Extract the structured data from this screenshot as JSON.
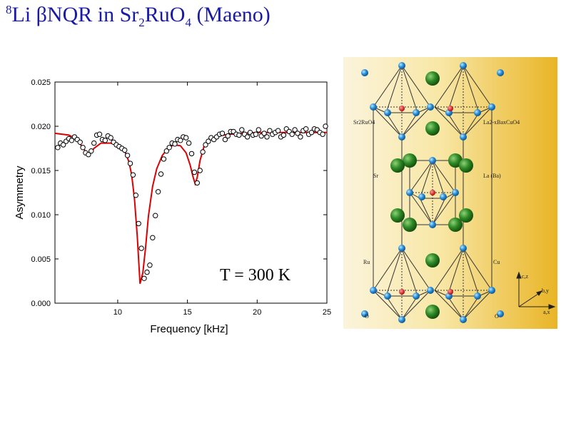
{
  "title": {
    "isotope_mass": "8",
    "text1": "Li βNQR in Sr",
    "sub1": "2",
    "text2": "RuO",
    "sub2": "4",
    "text3": " (Maeno)"
  },
  "chart_data": {
    "type": "scatter",
    "xlabel": "Frequency [kHz]",
    "ylabel": "Asymmetry",
    "xlim": [
      5.5,
      25
    ],
    "ylim": [
      0,
      0.025
    ],
    "xticks": [
      10,
      15,
      20,
      25
    ],
    "xtick_labels": [
      "10",
      "15",
      "20",
      "25"
    ],
    "yticks": [
      0,
      0.005,
      0.01,
      0.015,
      0.02,
      0.025
    ],
    "ytick_labels": [
      "0.000",
      "0.005",
      "0.010",
      "0.015",
      "0.020",
      "0.025"
    ],
    "annotation": "T = 300 K",
    "grid": false,
    "series": [
      {
        "kind": "points",
        "color": "#000000",
        "x": [
          5.7,
          5.9,
          6.1,
          6.3,
          6.5,
          6.7,
          6.9,
          7.1,
          7.3,
          7.5,
          7.7,
          7.9,
          8.1,
          8.3,
          8.5,
          8.7,
          8.9,
          9.1,
          9.3,
          9.5,
          9.7,
          9.9,
          10.1,
          10.3,
          10.5,
          10.7,
          10.9,
          11.1,
          11.3,
          11.5,
          11.7,
          11.9,
          12.1,
          12.3,
          12.5,
          12.7,
          12.9,
          13.1,
          13.3,
          13.5,
          13.7,
          13.9,
          14.1,
          14.3,
          14.5,
          14.7,
          14.9,
          15.1,
          15.3,
          15.5,
          15.7,
          15.9,
          16.1,
          16.3,
          16.5,
          16.7,
          16.9,
          17.1,
          17.3,
          17.5,
          17.7,
          17.9,
          18.1,
          18.3,
          18.5,
          18.7,
          18.9,
          19.1,
          19.3,
          19.5,
          19.7,
          19.9,
          20.1,
          20.3,
          20.5,
          20.7,
          20.9,
          21.1,
          21.3,
          21.5,
          21.7,
          21.9,
          22.1,
          22.3,
          22.5,
          22.7,
          22.9,
          23.1,
          23.3,
          23.5,
          23.7,
          23.9,
          24.1,
          24.3,
          24.5,
          24.7,
          24.9
        ],
        "y": [
          0.0176,
          0.0181,
          0.0179,
          0.0183,
          0.0186,
          0.0184,
          0.0188,
          0.0185,
          0.0182,
          0.0176,
          0.017,
          0.0168,
          0.0172,
          0.0181,
          0.019,
          0.0191,
          0.0185,
          0.0184,
          0.0189,
          0.0187,
          0.0182,
          0.0179,
          0.0177,
          0.0175,
          0.0173,
          0.0167,
          0.0158,
          0.0145,
          0.0122,
          0.009,
          0.0062,
          0.0028,
          0.0035,
          0.0043,
          0.0074,
          0.0099,
          0.0126,
          0.0146,
          0.0163,
          0.0172,
          0.0176,
          0.0181,
          0.018,
          0.0185,
          0.0184,
          0.0188,
          0.0187,
          0.0181,
          0.0169,
          0.0148,
          0.0136,
          0.015,
          0.0171,
          0.0179,
          0.0183,
          0.0187,
          0.0185,
          0.0188,
          0.0191,
          0.0192,
          0.0185,
          0.0189,
          0.0194,
          0.0194,
          0.0191,
          0.019,
          0.0196,
          0.0191,
          0.0188,
          0.0193,
          0.019,
          0.0191,
          0.0196,
          0.0189,
          0.0192,
          0.0188,
          0.0195,
          0.0191,
          0.0193,
          0.0195,
          0.0188,
          0.019,
          0.0197,
          0.0194,
          0.0191,
          0.0196,
          0.0192,
          0.0188,
          0.0195,
          0.0197,
          0.0191,
          0.0193,
          0.0197,
          0.0196,
          0.0193,
          0.0191,
          0.02
        ]
      },
      {
        "kind": "fit",
        "color": "#dd0000",
        "x": [
          5.5,
          6.5,
          7.0,
          7.5,
          7.8,
          8.0,
          8.3,
          8.8,
          9.5,
          10.0,
          10.5,
          10.8,
          11.0,
          11.2,
          11.4,
          11.6,
          11.8,
          12.0,
          12.2,
          12.5,
          12.8,
          13.2,
          13.6,
          14.0,
          14.5,
          14.9,
          15.2,
          15.4,
          15.55,
          15.7,
          15.9,
          16.2,
          16.6,
          17.2,
          18.0,
          19.0,
          20.0,
          22.0,
          25.0
        ],
        "y": [
          0.0192,
          0.019,
          0.0186,
          0.0176,
          0.0169,
          0.0169,
          0.0175,
          0.0181,
          0.0181,
          0.0179,
          0.0172,
          0.016,
          0.0145,
          0.0118,
          0.0076,
          0.0022,
          0.0034,
          0.0063,
          0.0098,
          0.0132,
          0.0152,
          0.0167,
          0.0175,
          0.0179,
          0.0178,
          0.017,
          0.0156,
          0.0143,
          0.0135,
          0.0142,
          0.0161,
          0.0178,
          0.0185,
          0.0189,
          0.0191,
          0.0192,
          0.0193,
          0.0193,
          0.0193
        ]
      }
    ]
  },
  "crystal": {
    "labels": {
      "sr2ruo4_name": "Sr2RuO4",
      "la_compound_name": "La2-xBaxCuO4",
      "sr": "Sr",
      "la_ba": "La (Ba)",
      "ru": "Ru",
      "cu": "Cu",
      "o_left": "O",
      "o_right": "O",
      "axis_cz": "c,z",
      "axis_by": "b,y",
      "axis_ax": "a,x"
    }
  }
}
